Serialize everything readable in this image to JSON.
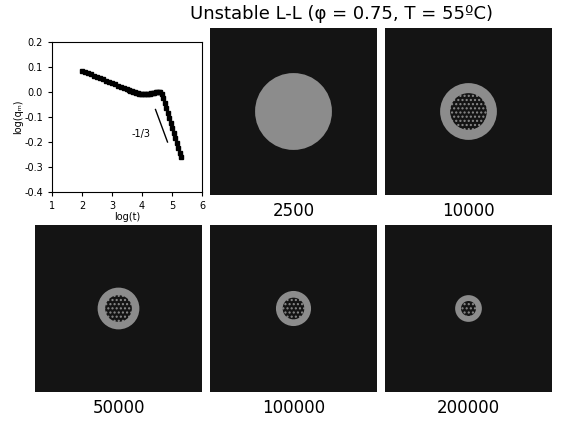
{
  "title": "Unstable L-L (φ = 0.75, T = 55ºC)",
  "chart_data": {
    "type": "scatter",
    "x_label": "log(t)",
    "y_label": "log(qₘ)",
    "x": [
      2.0,
      2.1,
      2.2,
      2.3,
      2.4,
      2.5,
      2.6,
      2.7,
      2.8,
      2.9,
      3.0,
      3.1,
      3.2,
      3.3,
      3.4,
      3.5,
      3.55,
      3.6,
      3.65,
      3.7,
      3.75,
      3.8,
      3.85,
      3.9,
      3.95,
      4.0,
      4.05,
      4.1,
      4.15,
      4.2,
      4.25,
      4.3,
      4.35,
      4.4,
      4.45,
      4.5,
      4.55,
      4.6,
      4.65,
      4.7,
      4.75,
      4.8,
      4.85,
      4.9,
      4.95,
      5.0,
      5.05,
      5.1,
      5.15,
      5.2,
      5.25,
      5.3
    ],
    "values": [
      0.085,
      0.08,
      0.075,
      0.07,
      0.065,
      0.06,
      0.055,
      0.05,
      0.045,
      0.04,
      0.035,
      0.03,
      0.025,
      0.02,
      0.015,
      0.01,
      0.008,
      0.005,
      0.003,
      0.0,
      -0.002,
      -0.004,
      -0.006,
      -0.008,
      -0.009,
      -0.01,
      -0.01,
      -0.01,
      -0.01,
      -0.009,
      -0.008,
      -0.006,
      -0.005,
      -0.003,
      -0.001,
      0.0,
      0.001,
      0.0,
      -0.01,
      -0.025,
      -0.045,
      -0.065,
      -0.085,
      -0.105,
      -0.125,
      -0.145,
      -0.165,
      -0.185,
      -0.205,
      -0.225,
      -0.245,
      -0.26
    ],
    "color": "#000000",
    "marker": "s",
    "xlim": [
      1,
      6
    ],
    "xticks": [
      1,
      2,
      3,
      4,
      5,
      6
    ],
    "ylim": [
      -0.4,
      0.2
    ],
    "yticks": [
      -0.4,
      -0.3,
      -0.2,
      -0.1,
      0.0,
      0.1,
      0.2
    ],
    "annotations": [
      {
        "text": "-1/3",
        "x": 4.3,
        "y": -0.17
      }
    ],
    "reference_line": {
      "x": [
        4.45,
        4.85
      ],
      "y": [
        -0.07,
        -0.2
      ]
    }
  },
  "panels": [
    {
      "label": "2500"
    },
    {
      "label": "10000"
    },
    {
      "label": "50000"
    },
    {
      "label": "100000"
    },
    {
      "label": "200000"
    }
  ]
}
